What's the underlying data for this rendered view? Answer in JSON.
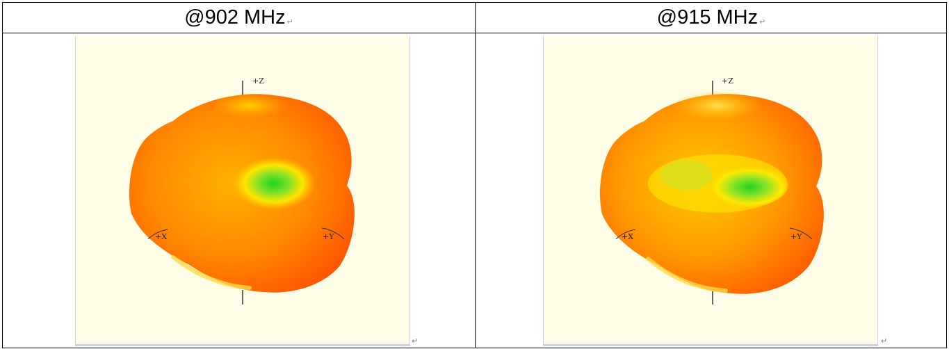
{
  "table": {
    "headers": [
      {
        "label": "@902 MHz",
        "mark": "↵"
      },
      {
        "label": "@915 MHz",
        "mark": "↵"
      }
    ],
    "paragraph_mark": "↵"
  },
  "patterns": [
    {
      "axis_labels": {
        "z": "+Z",
        "x": "+X",
        "y": "+Y"
      }
    },
    {
      "axis_labels": {
        "z": "+Z",
        "x": "+X",
        "y": "+Y"
      }
    }
  ],
  "colors": {
    "background": "#fffde7",
    "low": "#ff5a00",
    "mid": "#ffd400",
    "high": "#22cc22"
  }
}
